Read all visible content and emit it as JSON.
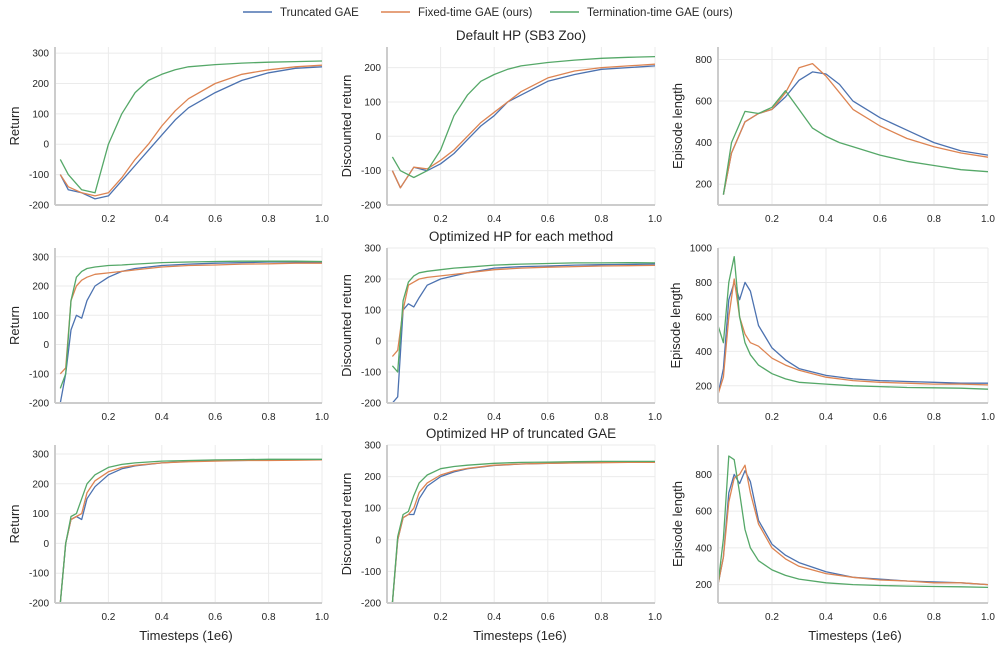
{
  "legend": [
    {
      "label": "Truncated GAE",
      "color": "#4c72b0"
    },
    {
      "label": "Fixed-time GAE (ours)",
      "color": "#dd8452"
    },
    {
      "label": "Termination-time GAE (ours)",
      "color": "#55a868"
    }
  ],
  "row_titles": [
    "Default HP (SB3 Zoo)",
    "Optimized HP for each method",
    "Optimized HP of truncated GAE"
  ],
  "xlabel": "Timesteps (1e6)",
  "chart_data": [
    {
      "type": "line",
      "title": "Default HP (SB3 Zoo)",
      "ylabel": "Return",
      "xlim": [
        0,
        1
      ],
      "ylim": [
        -200,
        320
      ],
      "xticks": [
        0.2,
        0.4,
        0.6,
        0.8,
        1.0
      ],
      "xtick_labels": [
        "0.2",
        "0.4",
        "0.6",
        "0.8",
        "1.0"
      ],
      "yticks": [
        -200,
        -100,
        0,
        100,
        200,
        300
      ],
      "ytick_labels": [
        "-200",
        "-100",
        "0",
        "100",
        "200",
        "300"
      ],
      "x": [
        0.02,
        0.05,
        0.1,
        0.15,
        0.2,
        0.25,
        0.3,
        0.35,
        0.4,
        0.45,
        0.5,
        0.6,
        0.7,
        0.8,
        0.9,
        1.0
      ],
      "series": [
        {
          "name": "Truncated GAE",
          "values": [
            -100,
            -150,
            -160,
            -180,
            -170,
            -120,
            -70,
            -20,
            30,
            80,
            120,
            170,
            210,
            235,
            250,
            255
          ]
        },
        {
          "name": "Fixed-time GAE (ours)",
          "values": [
            -100,
            -140,
            -160,
            -170,
            -160,
            -110,
            -50,
            0,
            60,
            110,
            150,
            200,
            230,
            245,
            255,
            260
          ]
        },
        {
          "name": "Termination-time GAE (ours)",
          "values": [
            -50,
            -100,
            -150,
            -160,
            0,
            100,
            170,
            210,
            230,
            245,
            255,
            262,
            267,
            270,
            272,
            274
          ]
        }
      ]
    },
    {
      "type": "line",
      "ylabel": "Discounted return",
      "xlim": [
        0,
        1
      ],
      "ylim": [
        -200,
        260
      ],
      "xticks": [
        0.2,
        0.4,
        0.6,
        0.8,
        1.0
      ],
      "xtick_labels": [
        "0.2",
        "0.4",
        "0.6",
        "0.8",
        "1.0"
      ],
      "yticks": [
        -200,
        -100,
        0,
        100,
        200
      ],
      "ytick_labels": [
        "-200",
        "-100",
        "0",
        "100",
        "200"
      ],
      "x": [
        0.02,
        0.05,
        0.1,
        0.15,
        0.2,
        0.25,
        0.3,
        0.35,
        0.4,
        0.45,
        0.5,
        0.6,
        0.7,
        0.8,
        0.9,
        1.0
      ],
      "series": [
        {
          "name": "Truncated GAE",
          "values": [
            -100,
            -150,
            -90,
            -100,
            -80,
            -50,
            -10,
            30,
            60,
            100,
            120,
            160,
            180,
            195,
            200,
            205
          ]
        },
        {
          "name": "Fixed-time GAE (ours)",
          "values": [
            -100,
            -150,
            -90,
            -95,
            -70,
            -40,
            0,
            40,
            70,
            100,
            130,
            170,
            190,
            200,
            205,
            210
          ]
        },
        {
          "name": "Termination-time GAE (ours)",
          "values": [
            -60,
            -100,
            -120,
            -100,
            -40,
            60,
            120,
            160,
            180,
            195,
            205,
            215,
            222,
            227,
            230,
            232
          ]
        }
      ]
    },
    {
      "type": "line",
      "ylabel": "Episode length",
      "xlim": [
        0,
        1
      ],
      "ylim": [
        100,
        860
      ],
      "xticks": [
        0.2,
        0.4,
        0.6,
        0.8,
        1.0
      ],
      "xtick_labels": [
        "0.2",
        "0.4",
        "0.6",
        "0.8",
        "1.0"
      ],
      "yticks": [
        200,
        400,
        600,
        800
      ],
      "ytick_labels": [
        "200",
        "400",
        "600",
        "800"
      ],
      "x": [
        0.02,
        0.05,
        0.1,
        0.15,
        0.2,
        0.25,
        0.3,
        0.35,
        0.4,
        0.45,
        0.5,
        0.6,
        0.7,
        0.8,
        0.9,
        1.0
      ],
      "series": [
        {
          "name": "Truncated GAE",
          "values": [
            150,
            350,
            500,
            540,
            560,
            620,
            700,
            740,
            730,
            680,
            600,
            520,
            460,
            400,
            360,
            340
          ]
        },
        {
          "name": "Fixed-time GAE (ours)",
          "values": [
            150,
            350,
            500,
            540,
            560,
            640,
            760,
            780,
            720,
            640,
            560,
            480,
            420,
            380,
            350,
            330
          ]
        },
        {
          "name": "Termination-time GAE (ours)",
          "values": [
            150,
            400,
            550,
            540,
            570,
            650,
            560,
            470,
            430,
            400,
            380,
            340,
            310,
            290,
            270,
            260
          ]
        }
      ]
    },
    {
      "type": "line",
      "title": "Optimized HP for each method",
      "ylabel": "Return",
      "xlim": [
        0,
        1
      ],
      "ylim": [
        -200,
        330
      ],
      "xticks": [
        0.2,
        0.4,
        0.6,
        0.8,
        1.0
      ],
      "xtick_labels": [
        "0.2",
        "0.4",
        "0.6",
        "0.8",
        "1.0"
      ],
      "yticks": [
        -200,
        -100,
        0,
        100,
        200,
        300
      ],
      "ytick_labels": [
        "-200",
        "-100",
        "0",
        "100",
        "200",
        "300"
      ],
      "x": [
        0.02,
        0.04,
        0.06,
        0.08,
        0.1,
        0.12,
        0.15,
        0.2,
        0.25,
        0.3,
        0.4,
        0.5,
        0.6,
        0.7,
        0.8,
        0.9,
        1.0
      ],
      "series": [
        {
          "name": "Truncated GAE",
          "values": [
            -200,
            -100,
            50,
            100,
            90,
            150,
            200,
            230,
            250,
            260,
            270,
            275,
            278,
            280,
            282,
            282,
            280
          ]
        },
        {
          "name": "Fixed-time GAE (ours)",
          "values": [
            -100,
            -80,
            150,
            200,
            220,
            230,
            240,
            245,
            250,
            255,
            265,
            270,
            272,
            275,
            276,
            278,
            278
          ]
        },
        {
          "name": "Termination-time GAE (ours)",
          "values": [
            -150,
            -100,
            150,
            230,
            250,
            260,
            265,
            270,
            272,
            275,
            280,
            282,
            284,
            285,
            285,
            285,
            284
          ]
        }
      ]
    },
    {
      "type": "line",
      "ylabel": "Discounted return",
      "xlim": [
        0,
        1
      ],
      "ylim": [
        -200,
        300
      ],
      "xticks": [
        0.2,
        0.4,
        0.6,
        0.8,
        1.0
      ],
      "xtick_labels": [
        "0.2",
        "0.4",
        "0.6",
        "0.8",
        "1.0"
      ],
      "yticks": [
        -200,
        -100,
        0,
        100,
        200,
        300
      ],
      "ytick_labels": [
        "-200",
        "-100",
        "0",
        "100",
        "200",
        "300"
      ],
      "x": [
        0.02,
        0.04,
        0.06,
        0.08,
        0.1,
        0.12,
        0.15,
        0.2,
        0.25,
        0.3,
        0.4,
        0.5,
        0.6,
        0.7,
        0.8,
        0.9,
        1.0
      ],
      "series": [
        {
          "name": "Truncated GAE",
          "values": [
            -200,
            -180,
            100,
            120,
            110,
            140,
            180,
            200,
            210,
            220,
            235,
            240,
            242,
            245,
            246,
            247,
            248
          ]
        },
        {
          "name": "Fixed-time GAE (ours)",
          "values": [
            -50,
            -30,
            100,
            180,
            190,
            200,
            205,
            210,
            215,
            220,
            230,
            235,
            238,
            240,
            242,
            243,
            244
          ]
        },
        {
          "name": "Termination-time GAE (ours)",
          "values": [
            -80,
            -100,
            130,
            190,
            210,
            220,
            225,
            230,
            235,
            238,
            245,
            248,
            250,
            252,
            252,
            253,
            252
          ]
        }
      ]
    },
    {
      "type": "line",
      "ylabel": "Episode length",
      "xlim": [
        0,
        1
      ],
      "ylim": [
        100,
        1000
      ],
      "xticks": [
        0.2,
        0.4,
        0.6,
        0.8,
        1.0
      ],
      "xtick_labels": [
        "0.2",
        "0.4",
        "0.6",
        "0.8",
        "1.0"
      ],
      "yticks": [
        200,
        400,
        600,
        800,
        1000
      ],
      "ytick_labels": [
        "200",
        "400",
        "600",
        "800",
        "1000"
      ],
      "x": [
        0.0,
        0.02,
        0.04,
        0.06,
        0.08,
        0.1,
        0.12,
        0.15,
        0.2,
        0.25,
        0.3,
        0.4,
        0.5,
        0.6,
        0.7,
        0.8,
        0.9,
        1.0
      ],
      "series": [
        {
          "name": "Truncated GAE",
          "values": [
            150,
            300,
            700,
            800,
            700,
            800,
            750,
            550,
            420,
            350,
            300,
            260,
            240,
            230,
            225,
            220,
            215,
            215
          ]
        },
        {
          "name": "Fixed-time GAE (ours)",
          "values": [
            150,
            250,
            600,
            820,
            600,
            500,
            450,
            430,
            360,
            320,
            290,
            250,
            230,
            220,
            215,
            210,
            210,
            205
          ]
        },
        {
          "name": "Termination-time GAE (ours)",
          "values": [
            550,
            450,
            800,
            950,
            600,
            450,
            380,
            320,
            270,
            240,
            220,
            210,
            200,
            195,
            190,
            188,
            186,
            180
          ]
        }
      ]
    },
    {
      "type": "line",
      "title": "Optimized HP of truncated GAE",
      "ylabel": "Return",
      "xlim": [
        0,
        1
      ],
      "ylim": [
        -200,
        330
      ],
      "xticks": [
        0.2,
        0.4,
        0.6,
        0.8,
        1.0
      ],
      "xtick_labels": [
        "0.2",
        "0.4",
        "0.6",
        "0.8",
        "1.0"
      ],
      "yticks": [
        -200,
        -100,
        0,
        100,
        200,
        300
      ],
      "ytick_labels": [
        "-200",
        "-100",
        "0",
        "100",
        "200",
        "300"
      ],
      "x": [
        0.02,
        0.04,
        0.06,
        0.08,
        0.1,
        0.12,
        0.15,
        0.2,
        0.25,
        0.3,
        0.4,
        0.5,
        0.6,
        0.7,
        0.8,
        0.9,
        1.0
      ],
      "series": [
        {
          "name": "Truncated GAE",
          "values": [
            -200,
            0,
            80,
            90,
            80,
            150,
            190,
            230,
            250,
            260,
            270,
            275,
            278,
            278,
            280,
            280,
            280
          ]
        },
        {
          "name": "Fixed-time GAE (ours)",
          "values": [
            -200,
            0,
            80,
            90,
            100,
            170,
            210,
            240,
            255,
            262,
            270,
            274,
            276,
            278,
            278,
            279,
            280
          ]
        },
        {
          "name": "Termination-time GAE (ours)",
          "values": [
            -200,
            0,
            90,
            100,
            150,
            200,
            230,
            255,
            265,
            270,
            276,
            278,
            280,
            281,
            282,
            282,
            282
          ]
        }
      ]
    },
    {
      "type": "line",
      "ylabel": "Discounted return",
      "xlim": [
        0,
        1
      ],
      "ylim": [
        -200,
        300
      ],
      "xticks": [
        0.2,
        0.4,
        0.6,
        0.8,
        1.0
      ],
      "xtick_labels": [
        "0.2",
        "0.4",
        "0.6",
        "0.8",
        "1.0"
      ],
      "yticks": [
        -200,
        -100,
        0,
        100,
        200,
        300
      ],
      "ytick_labels": [
        "-200",
        "-100",
        "0",
        "100",
        "200",
        "300"
      ],
      "x": [
        0.02,
        0.04,
        0.06,
        0.08,
        0.1,
        0.12,
        0.15,
        0.2,
        0.25,
        0.3,
        0.4,
        0.5,
        0.6,
        0.7,
        0.8,
        0.9,
        1.0
      ],
      "series": [
        {
          "name": "Truncated GAE",
          "values": [
            -200,
            0,
            70,
            80,
            80,
            130,
            170,
            200,
            215,
            225,
            235,
            240,
            242,
            244,
            245,
            246,
            246
          ]
        },
        {
          "name": "Fixed-time GAE (ours)",
          "values": [
            -200,
            0,
            70,
            80,
            100,
            150,
            180,
            205,
            218,
            226,
            236,
            240,
            242,
            243,
            244,
            245,
            245
          ]
        },
        {
          "name": "Termination-time GAE (ours)",
          "values": [
            -200,
            10,
            80,
            90,
            140,
            180,
            205,
            225,
            232,
            236,
            242,
            245,
            246,
            247,
            248,
            248,
            248
          ]
        }
      ]
    },
    {
      "type": "line",
      "ylabel": "Episode length",
      "xlim": [
        0,
        1
      ],
      "ylim": [
        100,
        960
      ],
      "xticks": [
        0.2,
        0.4,
        0.6,
        0.8,
        1.0
      ],
      "xtick_labels": [
        "0.2",
        "0.4",
        "0.6",
        "0.8",
        "1.0"
      ],
      "yticks": [
        200,
        400,
        600,
        800
      ],
      "ytick_labels": [
        "200",
        "400",
        "600",
        "800"
      ],
      "x": [
        0.0,
        0.02,
        0.04,
        0.06,
        0.08,
        0.1,
        0.12,
        0.15,
        0.2,
        0.25,
        0.3,
        0.4,
        0.5,
        0.6,
        0.7,
        0.8,
        0.9,
        1.0
      ],
      "series": [
        {
          "name": "Truncated GAE",
          "values": [
            200,
            350,
            700,
            800,
            750,
            820,
            760,
            550,
            420,
            360,
            320,
            270,
            240,
            230,
            220,
            215,
            210,
            200
          ]
        },
        {
          "name": "Fixed-time GAE (ours)",
          "values": [
            200,
            350,
            650,
            780,
            800,
            850,
            700,
            530,
            400,
            340,
            300,
            260,
            240,
            225,
            220,
            210,
            210,
            200
          ]
        },
        {
          "name": "Termination-time GAE (ours)",
          "values": [
            200,
            450,
            900,
            880,
            700,
            500,
            400,
            330,
            280,
            250,
            230,
            210,
            200,
            195,
            192,
            190,
            188,
            185
          ]
        }
      ]
    }
  ]
}
